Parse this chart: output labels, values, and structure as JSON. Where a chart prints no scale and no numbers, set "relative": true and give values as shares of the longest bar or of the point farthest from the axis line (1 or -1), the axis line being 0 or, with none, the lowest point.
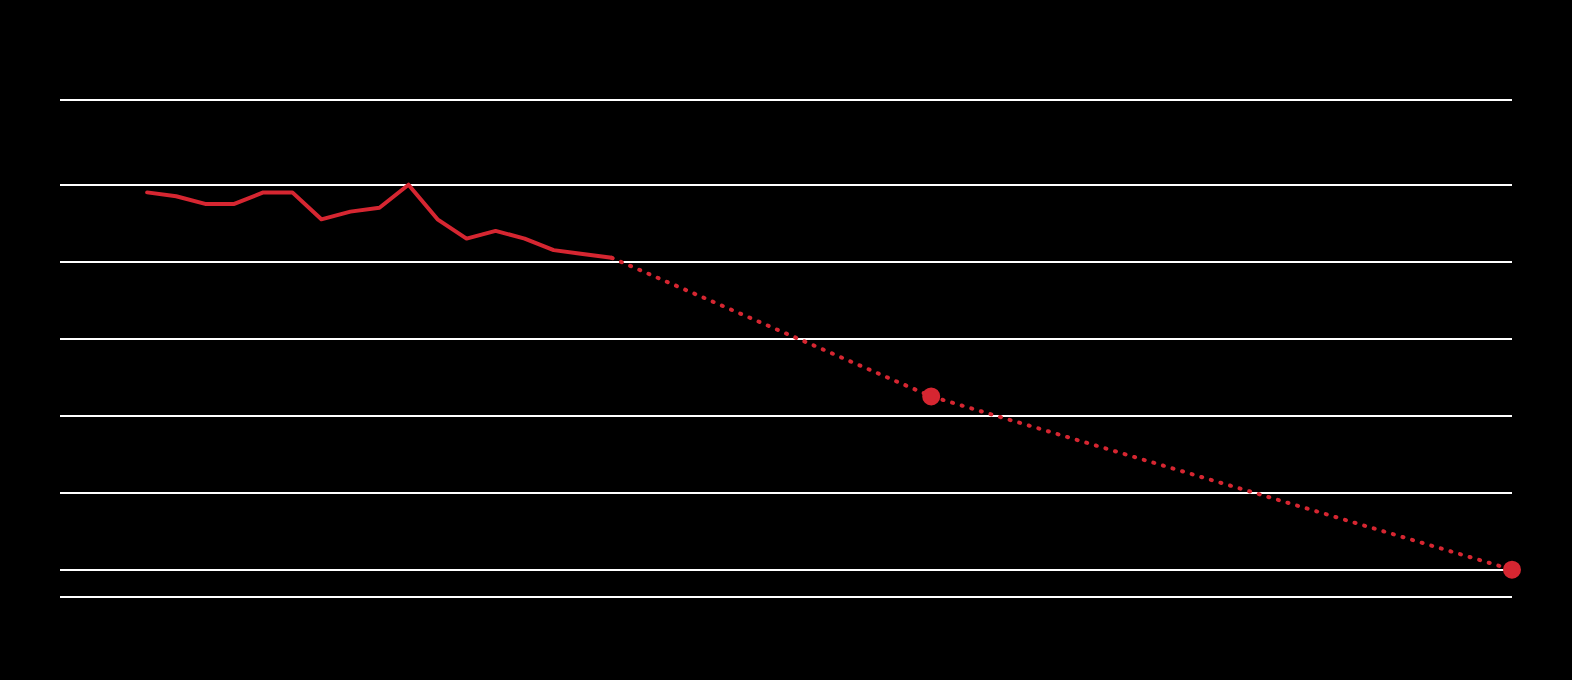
{
  "chart_data": {
    "type": "line",
    "relative": true,
    "grid": "y",
    "categories": [
      null,
      null,
      null,
      null,
      null,
      null,
      null,
      null,
      null,
      null,
      null,
      null,
      null,
      null,
      null,
      null,
      null,
      null,
      null,
      null,
      null,
      null,
      null,
      null,
      null,
      null,
      null,
      null,
      null,
      null,
      null,
      null,
      null,
      null,
      null,
      null,
      null,
      null,
      null,
      null,
      null,
      null,
      null,
      null,
      null,
      null,
      null,
      null,
      null,
      null,
      null
    ],
    "series": [
      {
        "color": "#d62631",
        "line_style": "solid",
        "marker": "none",
        "values": [
          null,
          null,
          null,
          0.98,
          0.97,
          0.95,
          0.95,
          0.98,
          0.98,
          0.91,
          0.93,
          0.94,
          1,
          0.91,
          0.86,
          0.88,
          0.86,
          0.83,
          0.82,
          0.81,
          null,
          null,
          null,
          null,
          null,
          null,
          null,
          null,
          null,
          null,
          null,
          null,
          null,
          null,
          null,
          null,
          null,
          null,
          null,
          null,
          null,
          null,
          null,
          null,
          null,
          null,
          null,
          null,
          null,
          null,
          null
        ]
      },
      {
        "color": "#d62631",
        "line_style": "dotted",
        "marker": "circle",
        "values": [
          null,
          null,
          null,
          null,
          null,
          null,
          null,
          null,
          null,
          null,
          null,
          null,
          null,
          null,
          null,
          null,
          null,
          null,
          null,
          0.81,
          null,
          null,
          null,
          null,
          null,
          null,
          null,
          null,
          null,
          null,
          0.45,
          null,
          null,
          null,
          null,
          null,
          null,
          null,
          null,
          null,
          null,
          null,
          null,
          null,
          null,
          null,
          null,
          null,
          null,
          null,
          0
        ]
      }
    ]
  }
}
